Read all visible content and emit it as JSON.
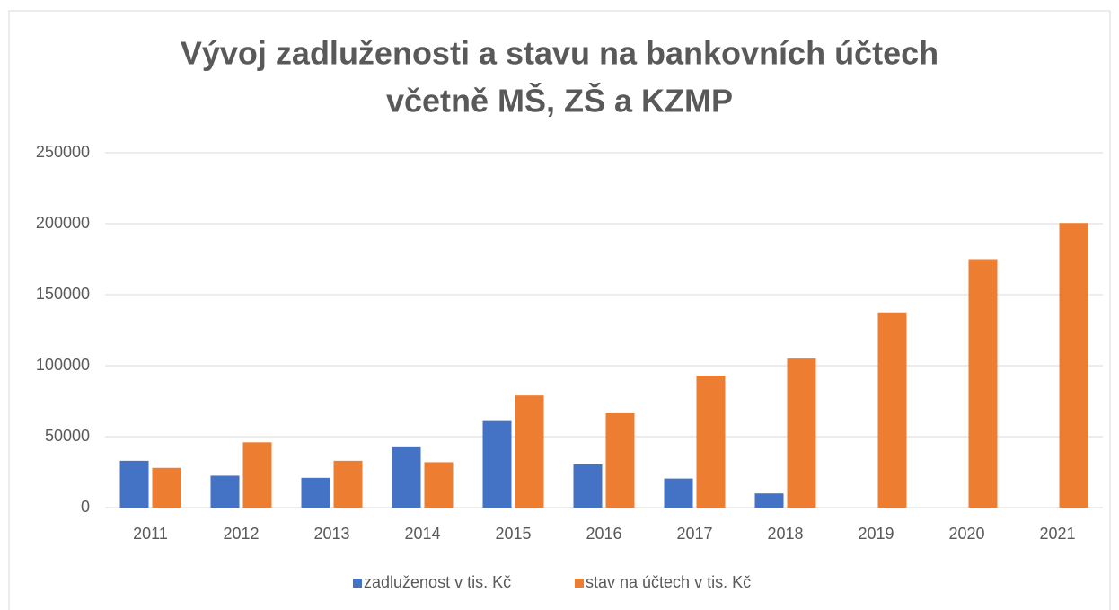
{
  "chart_data": {
    "type": "bar",
    "title": [
      "Vývoj zadluženosti a stavu na bankovních účtech",
      "včetně MŠ, ZŠ a KZMP"
    ],
    "categories": [
      "2011",
      "2012",
      "2013",
      "2014",
      "2015",
      "2016",
      "2017",
      "2018",
      "2019",
      "2020",
      "2021"
    ],
    "series": [
      {
        "name": "zadluženost v tis. Kč",
        "color": "#4472c4",
        "values": [
          33000,
          22500,
          21000,
          42500,
          61000,
          30500,
          20500,
          10000,
          0,
          0,
          0
        ]
      },
      {
        "name": "stav na účtech v tis. Kč",
        "color": "#ed7d31",
        "values": [
          28000,
          46000,
          33000,
          32000,
          79000,
          66500,
          93000,
          105000,
          137500,
          175000,
          200500
        ]
      }
    ],
    "ylim": [
      0,
      250000
    ],
    "yticks": [
      0,
      50000,
      100000,
      150000,
      200000,
      250000
    ],
    "grid": true,
    "legend": "bottom"
  }
}
